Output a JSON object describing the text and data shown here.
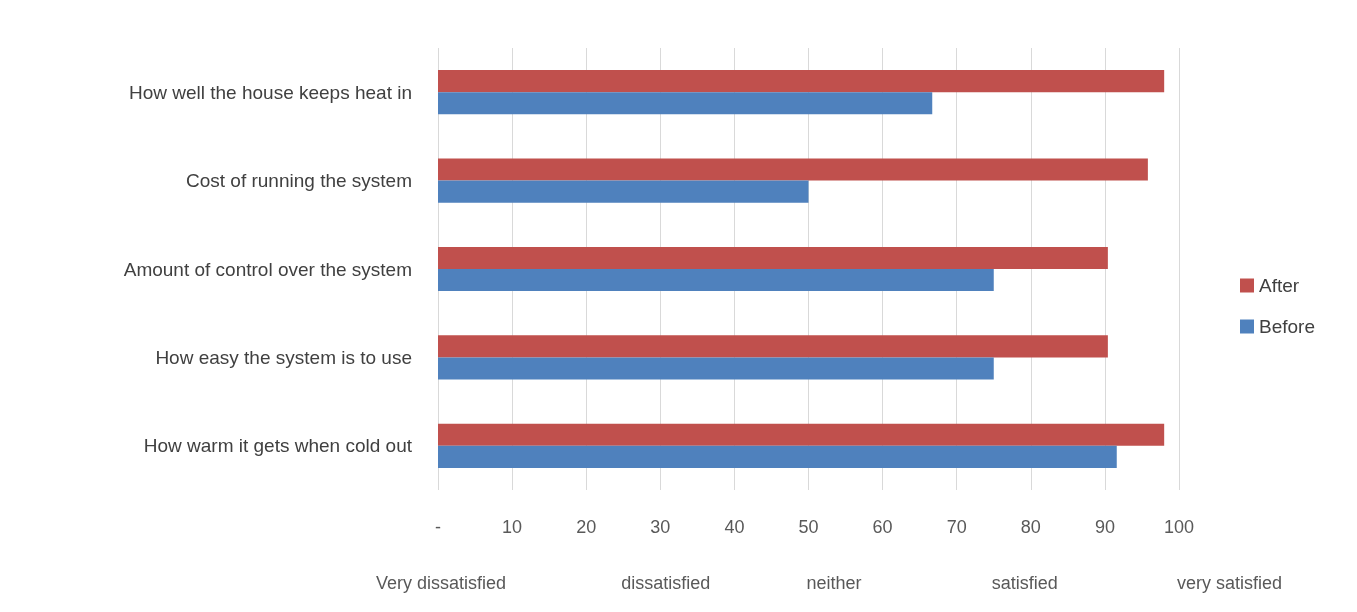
{
  "chart_data": {
    "type": "bar",
    "orientation": "horizontal",
    "categories": [
      "How well the house keeps heat in",
      "Cost of running the system",
      "Amount of control over the system",
      "How easy the system is to use",
      "How warm it gets when cold out"
    ],
    "series": [
      {
        "name": "After",
        "color": "#c0504d",
        "values": [
          98,
          95.8,
          90.4,
          90.4,
          98
        ]
      },
      {
        "name": "Before",
        "color": "#4f81bd",
        "values": [
          66.7,
          50,
          75,
          75,
          91.6
        ]
      }
    ],
    "xlim": [
      0,
      100
    ],
    "xticks": [
      {
        "value": 0,
        "label": "-"
      },
      10,
      20,
      30,
      40,
      50,
      60,
      70,
      80,
      90,
      100
    ],
    "annotations": [
      "Very dissatisfied",
      "dissatisfied",
      "neither",
      "satisfied",
      "very satisfied"
    ],
    "grid": "x",
    "legend": "right"
  }
}
